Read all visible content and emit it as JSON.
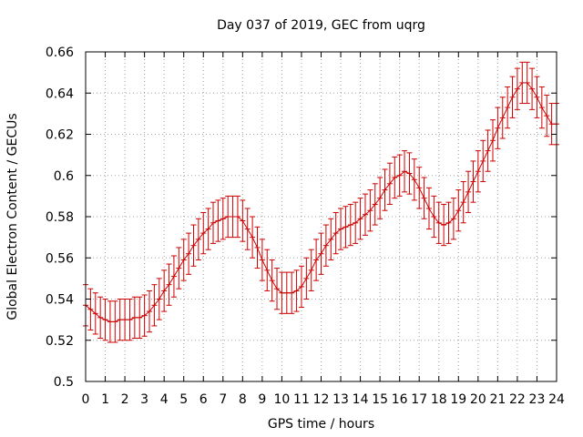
{
  "chart_data": {
    "type": "line",
    "title": "Day 037 of 2019, GEC from uqrg",
    "xlabel": "GPS time / hours",
    "ylabel": "Global Electron Content / GECUs",
    "xlim": [
      0,
      24
    ],
    "ylim": [
      0.5,
      0.66
    ],
    "xticks": [
      "0",
      "1",
      "2",
      "3",
      "4",
      "5",
      "6",
      "7",
      "8",
      "9",
      "10",
      "11",
      "12",
      "13",
      "14",
      "15",
      "16",
      "17",
      "18",
      "19",
      "20",
      "21",
      "22",
      "23",
      "24"
    ],
    "yticks": [
      "0.5",
      "0.52",
      "0.54",
      "0.56",
      "0.58",
      "0.6",
      "0.62",
      "0.64",
      "0.66"
    ],
    "grid": true,
    "series": [
      {
        "name": "GEC",
        "color": "#cc0000",
        "x": [
          0,
          0.25,
          0.5,
          0.75,
          1,
          1.25,
          1.5,
          1.75,
          2,
          2.25,
          2.5,
          2.75,
          3,
          3.25,
          3.5,
          3.75,
          4,
          4.25,
          4.5,
          4.75,
          5,
          5.25,
          5.5,
          5.75,
          6,
          6.25,
          6.5,
          6.75,
          7,
          7.25,
          7.5,
          7.75,
          8,
          8.25,
          8.5,
          8.75,
          9,
          9.25,
          9.5,
          9.75,
          10,
          10.25,
          10.5,
          10.75,
          11,
          11.25,
          11.5,
          11.75,
          12,
          12.25,
          12.5,
          12.75,
          13,
          13.25,
          13.5,
          13.75,
          14,
          14.25,
          14.5,
          14.75,
          15,
          15.25,
          15.5,
          15.75,
          16,
          16.25,
          16.5,
          16.75,
          17,
          17.25,
          17.5,
          17.75,
          18,
          18.25,
          18.5,
          18.75,
          19,
          19.25,
          19.5,
          19.75,
          20,
          20.25,
          20.5,
          20.75,
          21,
          21.25,
          21.5,
          21.75,
          22,
          22.25,
          22.5,
          22.75,
          23,
          23.25,
          23.5,
          23.75,
          24
        ],
        "y": [
          0.537,
          0.535,
          0.533,
          0.531,
          0.53,
          0.529,
          0.529,
          0.53,
          0.53,
          0.53,
          0.531,
          0.531,
          0.532,
          0.534,
          0.537,
          0.54,
          0.544,
          0.547,
          0.551,
          0.555,
          0.559,
          0.562,
          0.566,
          0.569,
          0.572,
          0.574,
          0.577,
          0.578,
          0.579,
          0.58,
          0.58,
          0.58,
          0.578,
          0.574,
          0.57,
          0.565,
          0.559,
          0.554,
          0.549,
          0.545,
          0.543,
          0.543,
          0.543,
          0.544,
          0.546,
          0.55,
          0.554,
          0.559,
          0.562,
          0.566,
          0.569,
          0.572,
          0.574,
          0.575,
          0.576,
          0.577,
          0.579,
          0.581,
          0.583,
          0.586,
          0.589,
          0.593,
          0.596,
          0.599,
          0.6,
          0.602,
          0.601,
          0.598,
          0.594,
          0.589,
          0.584,
          0.58,
          0.577,
          0.576,
          0.577,
          0.579,
          0.583,
          0.587,
          0.592,
          0.597,
          0.602,
          0.607,
          0.612,
          0.617,
          0.623,
          0.628,
          0.633,
          0.638,
          0.642,
          0.645,
          0.645,
          0.642,
          0.638,
          0.633,
          0.629,
          0.625,
          0.625
        ],
        "error": 0.01
      }
    ]
  }
}
